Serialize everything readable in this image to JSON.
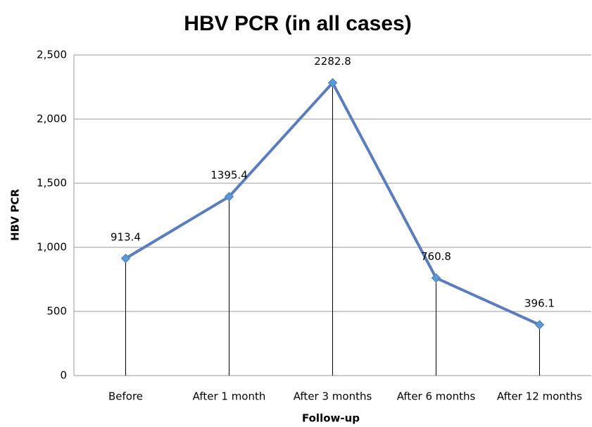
{
  "chart_data": {
    "type": "line",
    "title": "HBV PCR (in all cases)",
    "x_label": "Follow-up",
    "y_label": "HBV PCR",
    "categories": [
      "Before",
      "After 1 month",
      "After 3 months",
      "After 6 months",
      "After 12 months"
    ],
    "values": [
      913.4,
      1395.4,
      2282.8,
      760.8,
      396.1
    ],
    "color": "#5a7dbf",
    "marker_color": "#5b9bd5",
    "ylim": [
      0,
      2500
    ],
    "yticks": [
      0,
      500,
      {
        "value": 1000,
        "label": "1,000"
      },
      {
        "value": 1500,
        "label": "1,500"
      },
      {
        "value": 2000,
        "label": "2,000"
      },
      {
        "value": 2500,
        "label": "2,500"
      }
    ],
    "grid": true,
    "drop_lines": true
  }
}
